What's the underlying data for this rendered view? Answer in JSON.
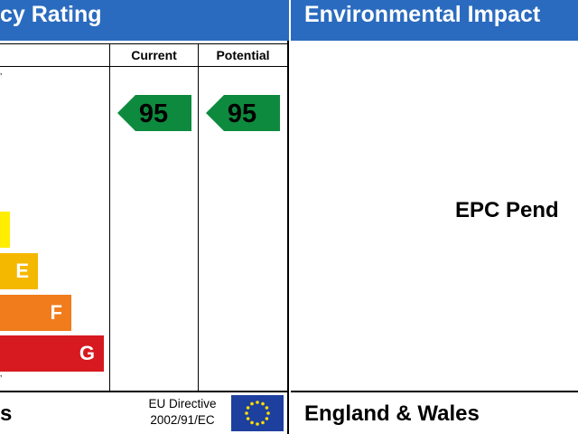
{
  "panels": {
    "left_title": "cy Rating",
    "right_title": "Environmental Impact"
  },
  "table": {
    "current_header": "Current",
    "potential_header": "Potential",
    "current_value": "95",
    "potential_value": "95"
  },
  "bands": [
    {
      "letter": "",
      "color": "#ffee00"
    },
    {
      "letter": "E",
      "color": "#f5b800"
    },
    {
      "letter": "F",
      "color": "#f07c1c"
    },
    {
      "letter": "G",
      "color": "#d71920"
    }
  ],
  "arrow_color": "#0e8a3e",
  "pending_text": "EPC Pend",
  "footer": {
    "left_text": "s",
    "eu_line1": "EU Directive",
    "eu_line2": "2002/91/EC",
    "right_text": "England & Wales"
  },
  "eu_flag": {
    "background": "#1d3f9e",
    "stars": "#ffde00"
  }
}
